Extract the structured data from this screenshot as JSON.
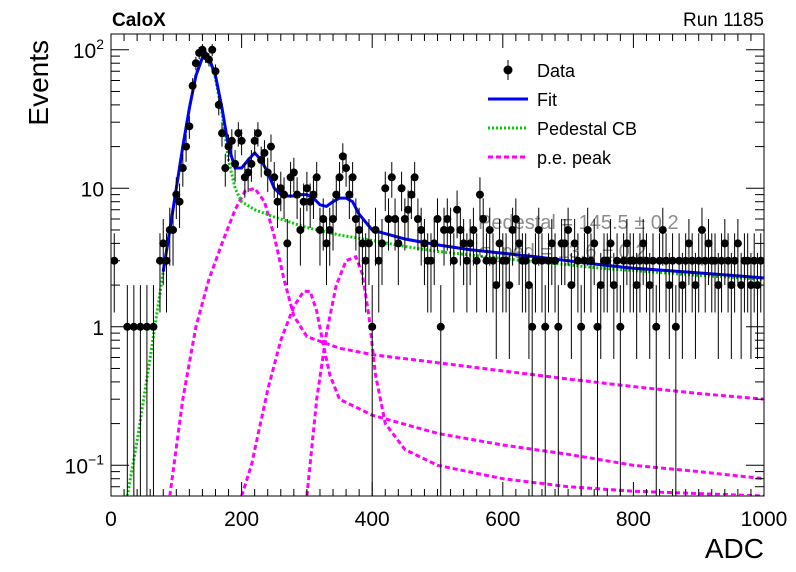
{
  "header": {
    "experiment": "CaloX",
    "run": "Run 1185"
  },
  "chart_data": {
    "type": "scatter",
    "xlabel": "ADC",
    "ylabel": "Events",
    "xlim": [
      0,
      1000
    ],
    "ylim": [
      0.06,
      130
    ],
    "yscale": "log",
    "grid": false,
    "legend_position": "top-right",
    "x_ticks": [
      "0",
      "200",
      "400",
      "600",
      "800",
      "1000"
    ],
    "y_ticks": [
      {
        "value": 0.1,
        "base": "10",
        "exp": "−1"
      },
      {
        "value": 1,
        "text": "1"
      },
      {
        "value": 10,
        "text": "10"
      },
      {
        "value": 100,
        "base": "10",
        "exp": "2"
      }
    ],
    "legend": [
      {
        "label": "Data",
        "style": "marker",
        "color": "#000000"
      },
      {
        "label": "Fit",
        "style": "solid",
        "color": "#0000ff"
      },
      {
        "label": "Pedestal CB",
        "style": "dotted",
        "color": "#00cc00"
      },
      {
        "label": "p.e. peak",
        "style": "dashed",
        "color": "#ff00ff"
      }
    ],
    "overlay_text": [
      "Pedestal = 145.5 ± 0.2",
      "σ_ped = 13.6 ± 0.2"
    ],
    "data_points": [
      [
        5,
        3
      ],
      [
        25,
        1
      ],
      [
        35,
        1
      ],
      [
        45,
        1
      ],
      [
        55,
        1
      ],
      [
        65,
        1
      ],
      [
        75,
        3
      ],
      [
        80,
        4
      ],
      [
        85,
        3
      ],
      [
        90,
        5
      ],
      [
        95,
        5
      ],
      [
        100,
        9
      ],
      [
        105,
        8
      ],
      [
        110,
        14
      ],
      [
        115,
        20
      ],
      [
        120,
        28
      ],
      [
        125,
        55
      ],
      [
        130,
        80
      ],
      [
        135,
        95
      ],
      [
        140,
        100
      ],
      [
        145,
        90
      ],
      [
        150,
        85
      ],
      [
        155,
        100
      ],
      [
        160,
        70
      ],
      [
        165,
        40
      ],
      [
        170,
        25
      ],
      [
        175,
        14
      ],
      [
        180,
        20
      ],
      [
        185,
        22
      ],
      [
        190,
        15
      ],
      [
        195,
        25
      ],
      [
        200,
        22
      ],
      [
        205,
        12
      ],
      [
        210,
        13
      ],
      [
        215,
        15
      ],
      [
        220,
        22
      ],
      [
        225,
        25
      ],
      [
        230,
        16
      ],
      [
        235,
        18
      ],
      [
        240,
        13
      ],
      [
        245,
        20
      ],
      [
        250,
        12
      ],
      [
        255,
        8
      ],
      [
        260,
        10
      ],
      [
        265,
        9
      ],
      [
        270,
        4
      ],
      [
        275,
        12
      ],
      [
        280,
        13
      ],
      [
        285,
        9
      ],
      [
        290,
        5
      ],
      [
        295,
        8
      ],
      [
        300,
        10
      ],
      [
        305,
        8
      ],
      [
        310,
        9
      ],
      [
        315,
        12
      ],
      [
        320,
        5
      ],
      [
        325,
        6
      ],
      [
        330,
        4
      ],
      [
        335,
        5
      ],
      [
        340,
        6
      ],
      [
        345,
        9
      ],
      [
        350,
        12
      ],
      [
        355,
        17
      ],
      [
        360,
        14
      ],
      [
        365,
        9
      ],
      [
        370,
        12
      ],
      [
        375,
        6
      ],
      [
        380,
        5
      ],
      [
        385,
        4
      ],
      [
        390,
        3
      ],
      [
        395,
        4
      ],
      [
        400,
        1
      ],
      [
        405,
        5
      ],
      [
        410,
        3
      ],
      [
        415,
        4
      ],
      [
        420,
        10
      ],
      [
        425,
        6
      ],
      [
        430,
        12
      ],
      [
        435,
        6
      ],
      [
        440,
        4
      ],
      [
        445,
        10
      ],
      [
        450,
        6
      ],
      [
        455,
        7
      ],
      [
        460,
        9
      ],
      [
        465,
        12
      ],
      [
        470,
        6
      ],
      [
        475,
        5
      ],
      [
        480,
        4
      ],
      [
        485,
        3
      ],
      [
        490,
        3
      ],
      [
        495,
        4
      ],
      [
        500,
        6
      ],
      [
        505,
        1
      ],
      [
        510,
        5
      ],
      [
        515,
        6
      ],
      [
        520,
        5
      ],
      [
        525,
        3
      ],
      [
        530,
        7
      ],
      [
        535,
        5
      ],
      [
        540,
        4
      ],
      [
        545,
        3
      ],
      [
        550,
        4
      ],
      [
        555,
        5
      ],
      [
        560,
        3
      ],
      [
        565,
        9
      ],
      [
        570,
        6
      ],
      [
        575,
        3
      ],
      [
        580,
        5
      ],
      [
        585,
        3
      ],
      [
        590,
        2
      ],
      [
        595,
        4
      ],
      [
        600,
        3
      ],
      [
        605,
        3
      ],
      [
        610,
        2
      ],
      [
        615,
        5
      ],
      [
        620,
        6
      ],
      [
        625,
        4
      ],
      [
        630,
        3
      ],
      [
        635,
        3
      ],
      [
        640,
        2
      ],
      [
        645,
        1
      ],
      [
        650,
        3
      ],
      [
        655,
        5
      ],
      [
        660,
        3
      ],
      [
        665,
        1
      ],
      [
        670,
        3
      ],
      [
        675,
        4
      ],
      [
        680,
        3
      ],
      [
        685,
        1
      ],
      [
        690,
        4
      ],
      [
        695,
        4
      ],
      [
        700,
        5
      ],
      [
        705,
        2
      ],
      [
        710,
        4
      ],
      [
        715,
        3
      ],
      [
        720,
        1
      ],
      [
        725,
        3
      ],
      [
        730,
        5
      ],
      [
        735,
        3
      ],
      [
        740,
        4
      ],
      [
        745,
        1
      ],
      [
        750,
        2
      ],
      [
        755,
        3
      ],
      [
        760,
        3
      ],
      [
        765,
        4
      ],
      [
        770,
        2
      ],
      [
        775,
        3
      ],
      [
        780,
        1
      ],
      [
        785,
        3
      ],
      [
        790,
        4
      ],
      [
        795,
        3
      ],
      [
        800,
        3
      ],
      [
        805,
        2
      ],
      [
        810,
        3
      ],
      [
        815,
        4
      ],
      [
        820,
        3
      ],
      [
        825,
        2
      ],
      [
        830,
        3
      ],
      [
        835,
        1
      ],
      [
        840,
        3
      ],
      [
        845,
        5
      ],
      [
        850,
        3
      ],
      [
        855,
        2
      ],
      [
        860,
        3
      ],
      [
        865,
        1
      ],
      [
        870,
        3
      ],
      [
        875,
        2
      ],
      [
        880,
        3
      ],
      [
        885,
        4
      ],
      [
        890,
        3
      ],
      [
        895,
        2
      ],
      [
        900,
        3
      ],
      [
        905,
        5
      ],
      [
        910,
        3
      ],
      [
        915,
        4
      ],
      [
        920,
        3
      ],
      [
        925,
        3
      ],
      [
        930,
        2
      ],
      [
        935,
        3
      ],
      [
        940,
        4
      ],
      [
        945,
        3
      ],
      [
        950,
        2
      ],
      [
        955,
        3
      ],
      [
        960,
        4
      ],
      [
        965,
        2
      ],
      [
        970,
        3
      ],
      [
        975,
        3
      ],
      [
        980,
        2
      ],
      [
        985,
        3
      ],
      [
        990,
        2
      ],
      [
        995,
        3
      ]
    ],
    "fit_curve": [
      [
        80,
        2.5
      ],
      [
        90,
        5
      ],
      [
        100,
        10
      ],
      [
        110,
        20
      ],
      [
        120,
        38
      ],
      [
        130,
        65
      ],
      [
        140,
        88
      ],
      [
        145,
        95
      ],
      [
        150,
        88
      ],
      [
        160,
        65
      ],
      [
        170,
        38
      ],
      [
        180,
        20
      ],
      [
        190,
        14
      ],
      [
        200,
        14
      ],
      [
        210,
        16
      ],
      [
        220,
        18
      ],
      [
        230,
        16
      ],
      [
        240,
        13
      ],
      [
        250,
        10
      ],
      [
        260,
        9
      ],
      [
        270,
        8.8
      ],
      [
        280,
        8.8
      ],
      [
        290,
        9
      ],
      [
        300,
        9
      ],
      [
        310,
        8.5
      ],
      [
        320,
        7.6
      ],
      [
        330,
        7.4
      ],
      [
        340,
        8
      ],
      [
        350,
        8.5
      ],
      [
        360,
        8.5
      ],
      [
        370,
        8
      ],
      [
        380,
        6.5
      ],
      [
        400,
        5
      ],
      [
        450,
        4.3
      ],
      [
        500,
        3.9
      ],
      [
        550,
        3.6
      ],
      [
        600,
        3.4
      ],
      [
        650,
        3.2
      ],
      [
        700,
        3.0
      ],
      [
        750,
        2.8
      ],
      [
        800,
        2.65
      ],
      [
        850,
        2.55
      ],
      [
        900,
        2.45
      ],
      [
        950,
        2.35
      ],
      [
        1000,
        2.25
      ]
    ],
    "pedestal_curve": [
      [
        25,
        0.06
      ],
      [
        40,
        0.15
      ],
      [
        60,
        0.6
      ],
      [
        80,
        2.5
      ],
      [
        90,
        5
      ],
      [
        100,
        10
      ],
      [
        110,
        20
      ],
      [
        120,
        38
      ],
      [
        130,
        65
      ],
      [
        140,
        88
      ],
      [
        145,
        95
      ],
      [
        150,
        88
      ],
      [
        160,
        62
      ],
      [
        170,
        35
      ],
      [
        180,
        16
      ],
      [
        190,
        10
      ],
      [
        200,
        8
      ],
      [
        220,
        7
      ],
      [
        250,
        6.2
      ],
      [
        300,
        5.2
      ],
      [
        350,
        4.6
      ],
      [
        400,
        4.2
      ],
      [
        450,
        3.8
      ],
      [
        500,
        3.5
      ],
      [
        550,
        3.3
      ],
      [
        600,
        3.1
      ],
      [
        650,
        2.95
      ],
      [
        700,
        2.8
      ],
      [
        750,
        2.65
      ],
      [
        800,
        2.55
      ],
      [
        850,
        2.45
      ],
      [
        900,
        2.35
      ],
      [
        950,
        2.28
      ],
      [
        1000,
        2.2
      ]
    ],
    "pe_peaks": [
      [
        [
          90,
          0.06
        ],
        [
          110,
          0.3
        ],
        [
          130,
          1
        ],
        [
          150,
          2.2
        ],
        [
          170,
          4
        ],
        [
          190,
          7
        ],
        [
          205,
          9.5
        ],
        [
          220,
          10
        ],
        [
          235,
          8
        ],
        [
          250,
          4.5
        ],
        [
          265,
          2.2
        ],
        [
          280,
          1.2
        ],
        [
          300,
          0.85
        ],
        [
          350,
          0.7
        ],
        [
          400,
          0.63
        ],
        [
          500,
          0.55
        ],
        [
          600,
          0.48
        ],
        [
          700,
          0.42
        ],
        [
          800,
          0.37
        ],
        [
          900,
          0.33
        ],
        [
          1000,
          0.3
        ]
      ],
      [
        [
          200,
          0.06
        ],
        [
          215,
          0.1
        ],
        [
          240,
          0.35
        ],
        [
          260,
          0.8
        ],
        [
          280,
          1.4
        ],
        [
          295,
          1.8
        ],
        [
          305,
          1.8
        ],
        [
          315,
          1.3
        ],
        [
          325,
          0.75
        ],
        [
          335,
          0.45
        ],
        [
          350,
          0.3
        ],
        [
          400,
          0.23
        ],
        [
          500,
          0.17
        ],
        [
          600,
          0.14
        ],
        [
          700,
          0.12
        ],
        [
          800,
          0.1
        ],
        [
          900,
          0.09
        ],
        [
          1000,
          0.08
        ]
      ],
      [
        [
          300,
          0.06
        ],
        [
          315,
          0.3
        ],
        [
          330,
          0.9
        ],
        [
          345,
          2
        ],
        [
          360,
          3
        ],
        [
          375,
          3.2
        ],
        [
          385,
          2.4
        ],
        [
          395,
          1.2
        ],
        [
          405,
          0.45
        ],
        [
          420,
          0.2
        ],
        [
          450,
          0.13
        ],
        [
          500,
          0.1
        ],
        [
          600,
          0.08
        ],
        [
          700,
          0.07
        ],
        [
          800,
          0.065
        ],
        [
          1000,
          0.06
        ]
      ]
    ]
  }
}
